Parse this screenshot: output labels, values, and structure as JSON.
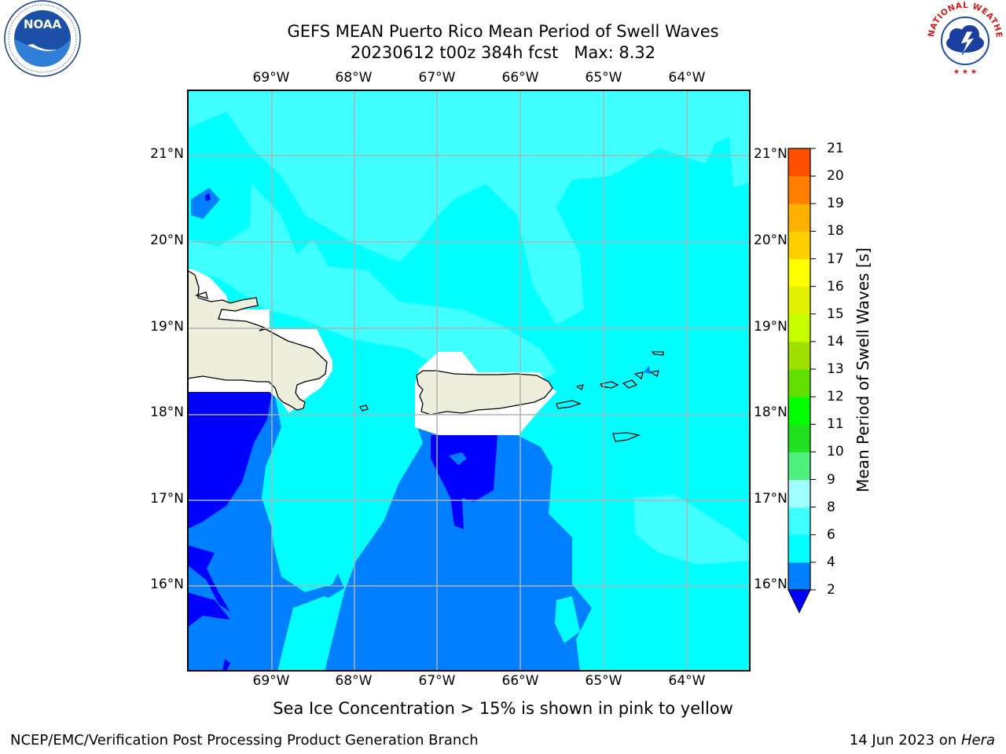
{
  "title": {
    "line1": "GEFS MEAN Puerto Rico Mean Period of Swell Waves",
    "line2": "20230612 t00z 384h fcst   Max: 8.32"
  },
  "logos": {
    "noaa_text": "NOAA",
    "nws_ring_text": "NATIONAL WEATHER SERVICE"
  },
  "map": {
    "lon_ticks": [
      "69°W",
      "68°W",
      "67°W",
      "66°W",
      "65°W",
      "64°W"
    ],
    "lat_ticks": [
      "21°N",
      "20°N",
      "19°N",
      "18°N",
      "17°N",
      "16°N"
    ],
    "colors": {
      "land": "#eeeedc",
      "range_2_4": "#0080ff",
      "range_4_6": "#00ffff",
      "range_6_8": "#40ffff",
      "below_2": "#0000ff",
      "grid": "#b0b0b0",
      "coast": "#000000"
    }
  },
  "colorbar": {
    "label": "Mean Period of Swell Waves [s]",
    "ticks": [
      "2",
      "4",
      "6",
      "8",
      "9",
      "10",
      "11",
      "12",
      "13",
      "14",
      "15",
      "16",
      "17",
      "18",
      "19",
      "20",
      "21"
    ],
    "colors": [
      "#0080ff",
      "#00ffff",
      "#40ffff",
      "#a0ffff",
      "#50f080",
      "#20e020",
      "#00ff00",
      "#60e000",
      "#a0e000",
      "#c8ff00",
      "#e0f000",
      "#ffff00",
      "#ffd000",
      "#ffb000",
      "#ff8000",
      "#ff5000",
      "#ff2000",
      "#ff0000"
    ],
    "extend_color": "#0000ff"
  },
  "subtitle": "Sea Ice Concentration > 15% is shown in pink to yellow",
  "footer": {
    "left": "NCEP/EMC/Verification Post Processing Product Generation Branch",
    "right_date": "14 Jun 2023 on ",
    "right_host": "Hera"
  }
}
